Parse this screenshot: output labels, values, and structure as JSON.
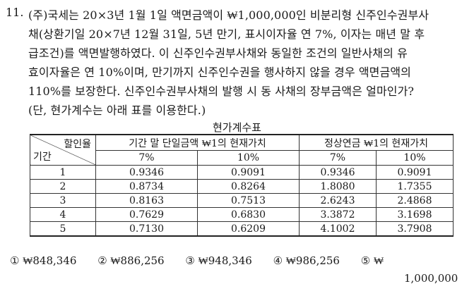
{
  "question": {
    "number": "11.",
    "lines": [
      "(주)국세는 20×3년 1월 1일 액면금액이 ₩1,000,000인 비분리형 신주인수권부사",
      "채(상환기일 20×7년 12월 31일, 5년 만기, 표시이자율 연 7%, 이자는 매년 말 후",
      "급조건)를 액면발행하였다. 이 신주인수권부사채와 동일한 조건의 일반사채의 유",
      "효이자율은 연 10%이며, 만기까지 신주인수권을 행사하지 않을 경우 액면금액의",
      "110%를 보장한다. 신주인수권부사채의 발행 시 동 사채의 장부금액은 얼마인가?",
      "(단, 현가계수는 아래 표를 이용한다.)"
    ]
  },
  "table": {
    "caption": "현가계수표",
    "corner_top": "할인율",
    "corner_bottom": "기간",
    "group1": "기간 말 단일금액 ₩1의 현재가치",
    "group2": "정상연금 ₩1의 현재가치",
    "rates": [
      "7%",
      "10%",
      "7%",
      "10%"
    ],
    "rows": [
      {
        "period": "1",
        "v": [
          "0.9346",
          "0.9091",
          "0.9346",
          "0.9091"
        ]
      },
      {
        "period": "2",
        "v": [
          "0.8734",
          "0.8264",
          "1.8080",
          "1.7355"
        ]
      },
      {
        "period": "3",
        "v": [
          "0.8163",
          "0.7513",
          "2.6243",
          "2.4868"
        ]
      },
      {
        "period": "4",
        "v": [
          "0.7629",
          "0.6830",
          "3.3872",
          "3.1698"
        ]
      },
      {
        "period": "5",
        "v": [
          "0.7130",
          "0.6209",
          "4.1002",
          "3.7908"
        ]
      }
    ]
  },
  "choices": {
    "c1": "① ₩848,346",
    "c2": "② ₩886,256",
    "c3": "③ ₩948,346",
    "c4": "④ ₩986,256",
    "c5a": "⑤ ₩",
    "c5b": "1,000,000"
  }
}
